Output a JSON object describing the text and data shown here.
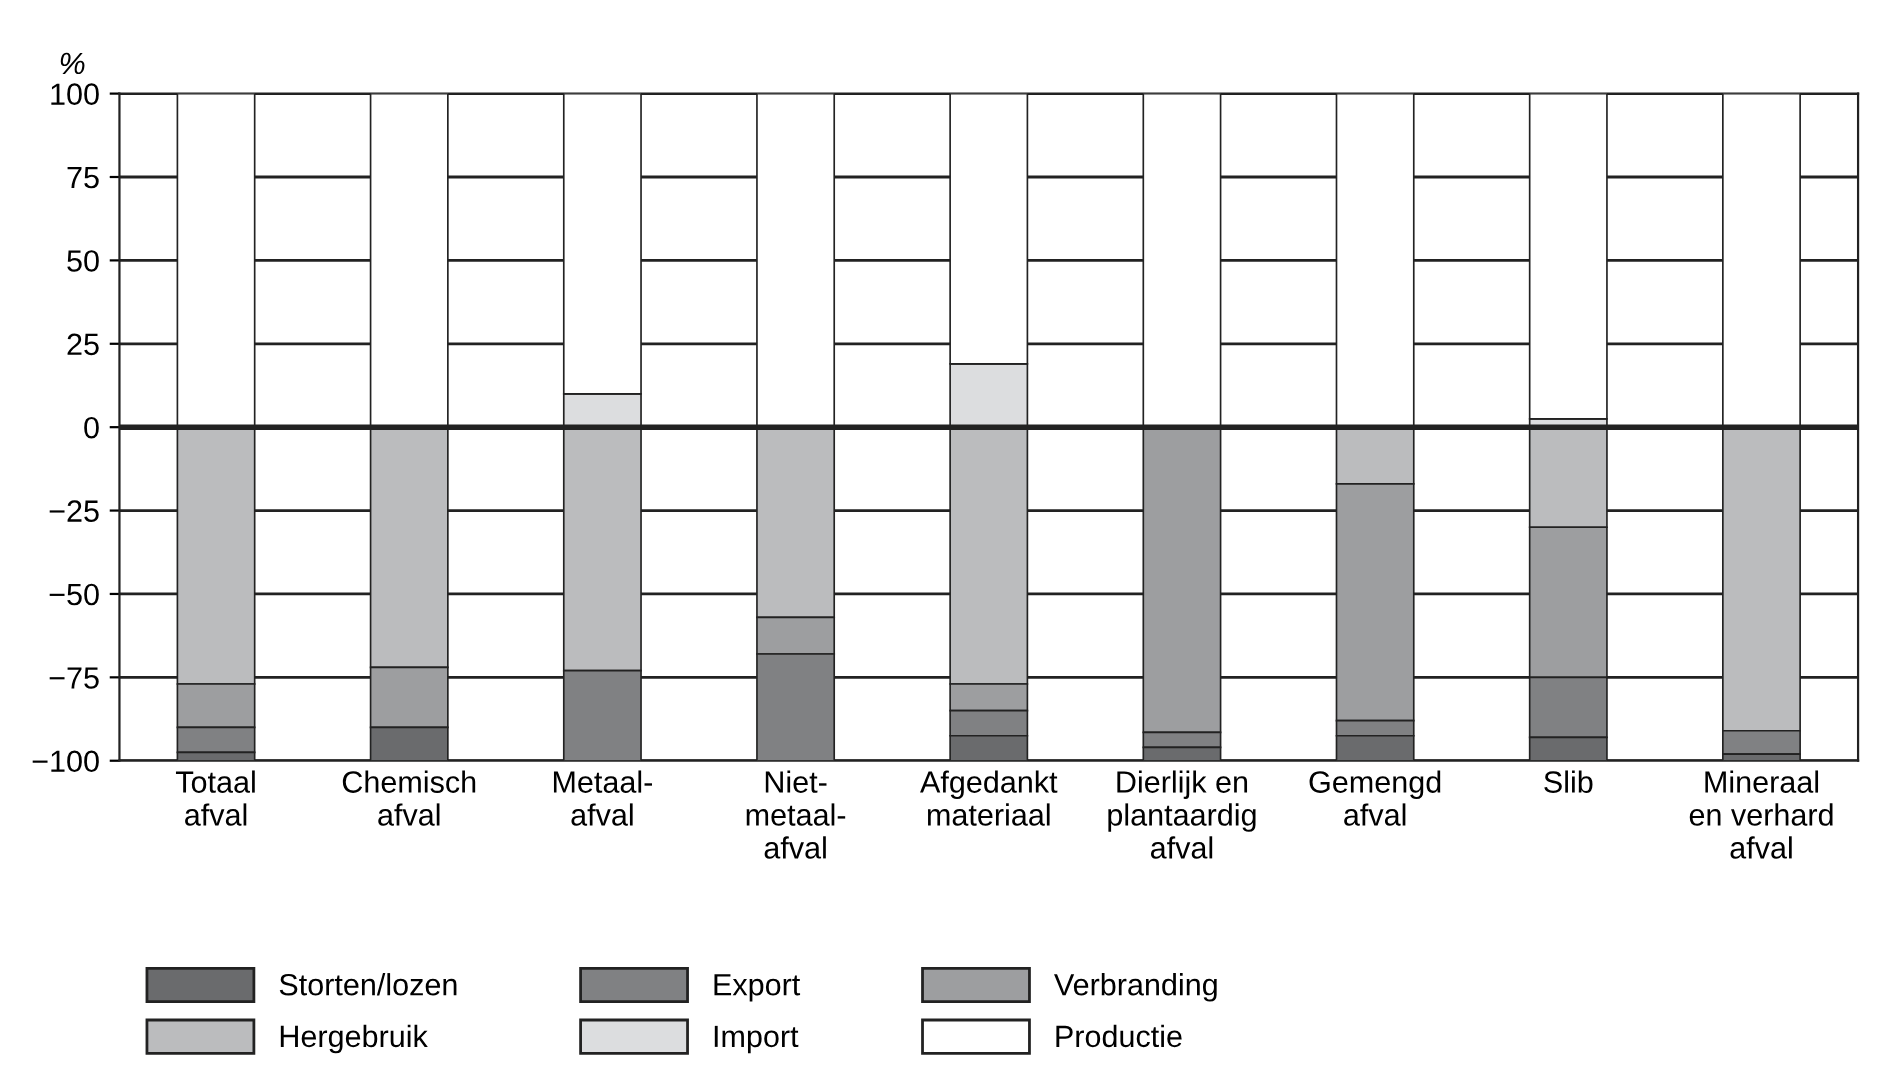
{
  "chart_data": {
    "type": "bar",
    "stacked": true,
    "ylabel": "%",
    "categories": [
      "Totaal\nafval",
      "Chemisch\nafval",
      "Metaal-\nafval",
      "Niet-\nmetaal-\nafval",
      "Afgedankt\nmateriaal",
      "Dierlijk en\nplantaardig\nafval",
      "Gemengd\nafval",
      "Slib",
      "Mineraal\nen verhard\nafval"
    ],
    "series": [
      {
        "name": "Hergebruik",
        "color": "#bbbcbe",
        "values": [
          -77,
          -72,
          -73,
          -57,
          -77,
          0,
          -17,
          -30,
          -91
        ]
      },
      {
        "name": "Verbranding",
        "color": "#9d9ea0",
        "values": [
          -13,
          -18,
          0,
          -11,
          -8,
          -91.5,
          -71,
          -45,
          0
        ]
      },
      {
        "name": "Export",
        "color": "#808183",
        "values": [
          -7.5,
          0,
          -27,
          -32,
          -7.5,
          -4.5,
          -4.5,
          -18,
          -7
        ]
      },
      {
        "name": "Storten/lozen",
        "color": "#6a6b6d",
        "values": [
          -2.5,
          -10,
          0,
          0,
          -7.5,
          -4,
          -7.5,
          -7,
          -2
        ]
      },
      {
        "name": "Import",
        "color": "#dcdddf",
        "values": [
          0,
          0,
          10,
          0,
          19,
          null,
          0,
          2.5,
          0
        ]
      },
      {
        "name": "Productie",
        "color": "#ffffff",
        "values": [
          100,
          100,
          90,
          100,
          81,
          100,
          100,
          97.5,
          100
        ]
      }
    ],
    "ylim": [
      -100,
      100
    ],
    "yticks": [
      {
        "value": -100,
        "label": "−100"
      },
      {
        "value": -75,
        "label": "−75"
      },
      {
        "value": -50,
        "label": "−50"
      },
      {
        "value": -25,
        "label": "−25"
      },
      0,
      25,
      50,
      75,
      100
    ],
    "ref_lines": [
      {
        "axis": "y",
        "value": 0,
        "color": "#222222"
      }
    ],
    "grid": "y",
    "legend": "bottom"
  }
}
